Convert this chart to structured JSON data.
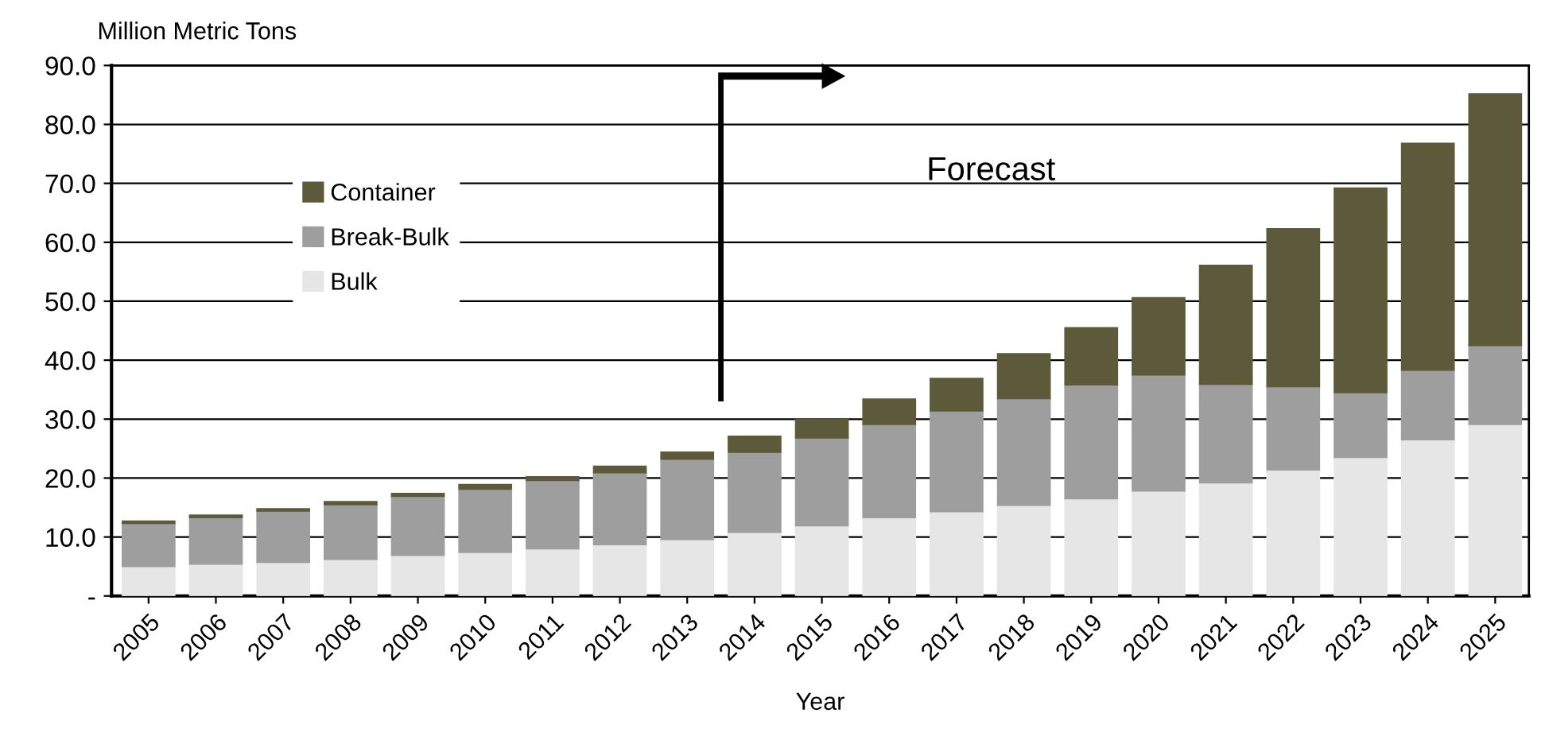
{
  "chart_data": {
    "type": "bar",
    "stacked": true,
    "ylabel": "Million Metric Tons",
    "xlabel": "Year",
    "categories": [
      "2005",
      "2006",
      "2007",
      "2008",
      "2009",
      "2010",
      "2011",
      "2012",
      "2013",
      "2014",
      "2015",
      "2016",
      "2017",
      "2018",
      "2019",
      "2020",
      "2021",
      "2022",
      "2023",
      "2024",
      "2025"
    ],
    "series": [
      {
        "name": "Bulk",
        "color": "#e6e6e6",
        "values": [
          5.0,
          5.4,
          5.7,
          6.2,
          6.9,
          7.4,
          8.0,
          8.7,
          9.6,
          10.8,
          11.9,
          13.3,
          14.3,
          15.4,
          16.5,
          17.8,
          19.2,
          21.4,
          23.5,
          26.5,
          29.1
        ]
      },
      {
        "name": "Break-Bulk",
        "color": "#9e9e9e",
        "values": [
          7.3,
          7.9,
          8.7,
          9.3,
          10.0,
          10.7,
          11.6,
          12.2,
          13.6,
          13.6,
          14.9,
          15.8,
          17.1,
          18.1,
          19.3,
          19.7,
          16.7,
          14.1,
          11.0,
          11.8,
          13.4
        ]
      },
      {
        "name": "Container",
        "color": "#5c5a3a",
        "values": [
          0.4,
          0.4,
          0.4,
          0.5,
          0.5,
          0.8,
          0.6,
          1.1,
          1.2,
          2.7,
          3.2,
          4.3,
          5.5,
          7.6,
          9.7,
          13.1,
          20.2,
          26.8,
          34.7,
          38.5,
          42.7
        ]
      }
    ],
    "ylim": [
      0,
      90
    ],
    "yticks": [
      {
        "value": 0,
        "label": "-"
      },
      {
        "value": 10,
        "label": "10.0"
      },
      {
        "value": 20,
        "label": "20.0"
      },
      {
        "value": 30,
        "label": "30.0"
      },
      {
        "value": 40,
        "label": "40.0"
      },
      {
        "value": 50,
        "label": "50.0"
      },
      {
        "value": 60,
        "label": "60.0"
      },
      {
        "value": 70,
        "label": "70.0"
      },
      {
        "value": 80,
        "label": "80.0"
      },
      {
        "value": 90,
        "label": "90.0"
      }
    ],
    "grid": "y",
    "legend": "top left",
    "annotations": [
      "Forecast"
    ]
  }
}
